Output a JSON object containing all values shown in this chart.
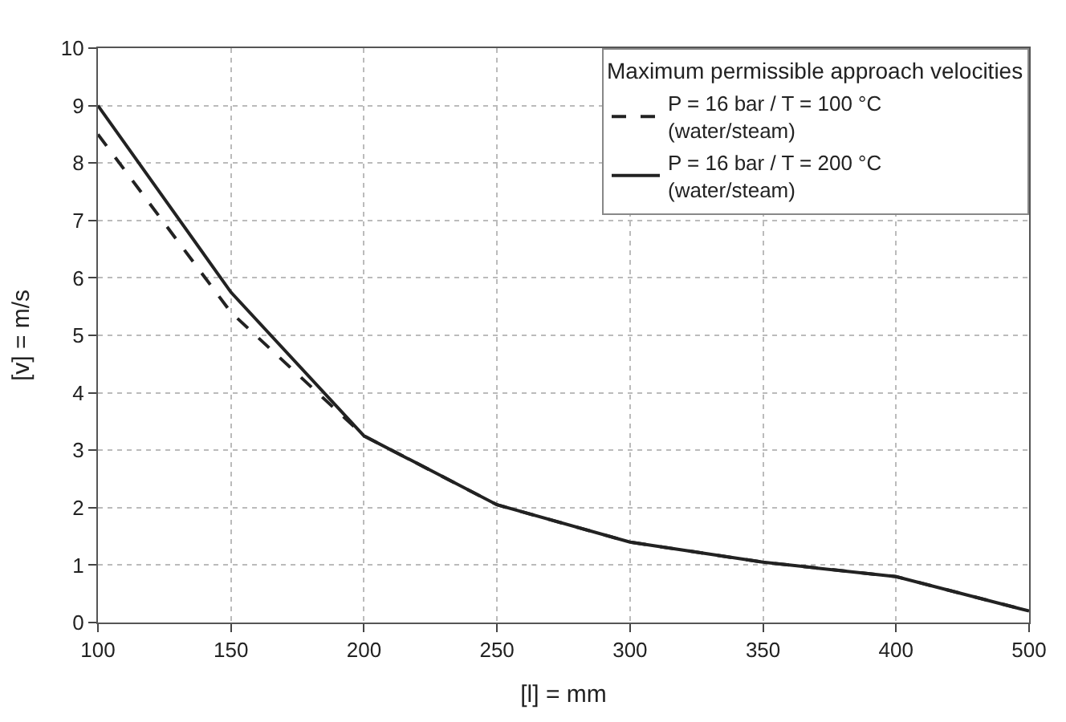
{
  "chart_data": {
    "type": "line",
    "legend_title": "Maximum permissible approach velocities",
    "xlabel": "[l] = mm",
    "ylabel": "[v] = m/s",
    "categories": [
      "100",
      "150",
      "200",
      "250",
      "300",
      "350",
      "400",
      "500"
    ],
    "series": [
      {
        "name": "P = 16 bar / T = 100 °C\n(water/steam)",
        "color": "#222222",
        "line_style": "dashed",
        "values": [
          8.5,
          5.4,
          3.25,
          2.05,
          1.4,
          1.05,
          0.8,
          0.2
        ]
      },
      {
        "name": "P = 16 bar / T = 200 °C\n(water/steam)",
        "color": "#222222",
        "line_style": "solid",
        "values": [
          9.0,
          5.75,
          3.25,
          2.05,
          1.4,
          1.05,
          0.8,
          0.2
        ]
      }
    ],
    "ylim": [
      0,
      10
    ],
    "yticks": [
      0,
      1,
      2,
      3,
      4,
      5,
      6,
      7,
      8,
      9,
      10
    ],
    "grid": true,
    "legend": "top right",
    "marker": "none"
  }
}
